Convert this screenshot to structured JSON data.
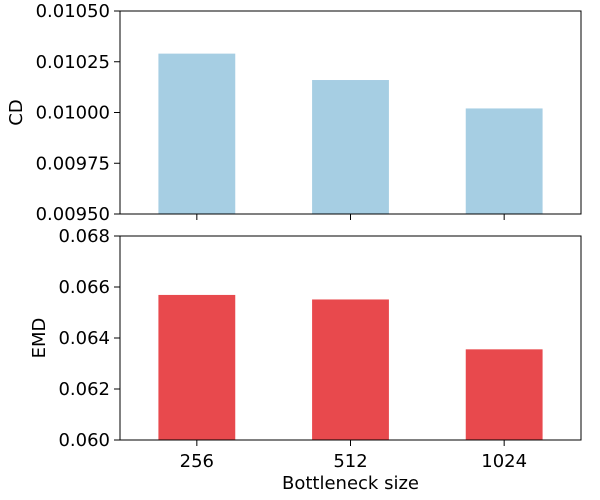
{
  "chart_data": [
    {
      "type": "bar",
      "categories": [
        "256",
        "512",
        "1024"
      ],
      "values": [
        0.01029,
        0.01016,
        0.01002
      ],
      "title": "",
      "xlabel": "",
      "ylabel": "CD",
      "ylim": [
        0.0095,
        0.0105
      ],
      "yticks": [
        "0.00950",
        "0.00975",
        "0.01000",
        "0.01025",
        "0.01050"
      ],
      "color": "#a6cee3",
      "grid": false
    },
    {
      "type": "bar",
      "categories": [
        "256",
        "512",
        "1024"
      ],
      "values": [
        0.0664,
        0.0662,
        0.064
      ],
      "title": "",
      "xlabel": "Bottleneck size",
      "ylabel": "EMD",
      "ylim": [
        0.06,
        0.069
      ],
      "yticks": [
        "0.060",
        "0.062",
        "0.064",
        "0.066",
        "0.068"
      ],
      "color": "#e8494d",
      "grid": false
    }
  ]
}
